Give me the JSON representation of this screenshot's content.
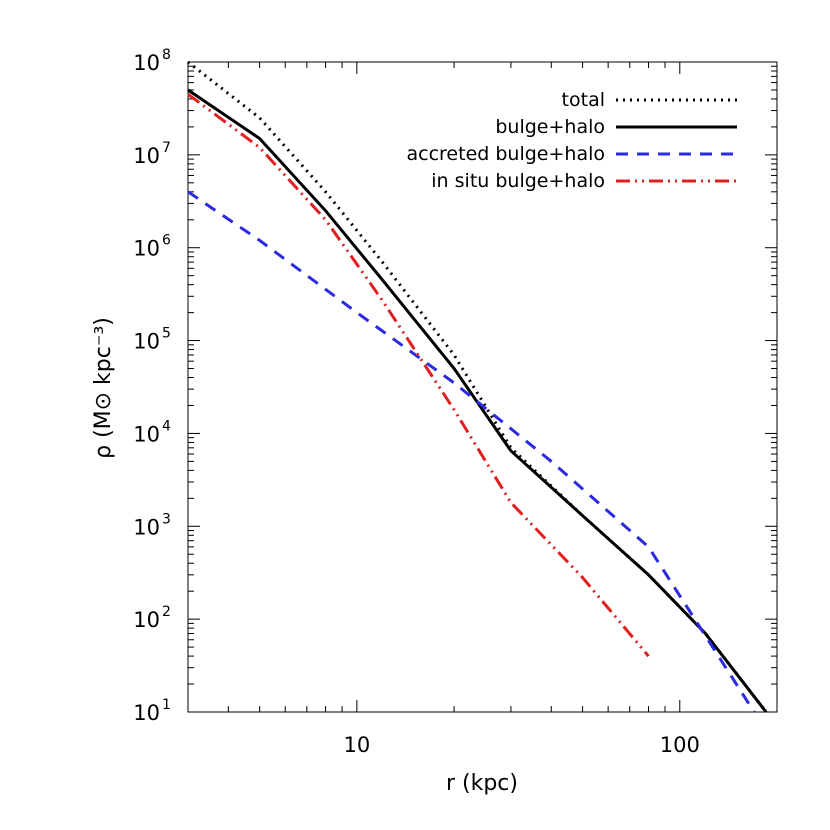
{
  "chart_data": {
    "type": "line",
    "xlabel": "r (kpc)",
    "ylabel": "ρ (M⊙ kpc⁻³)",
    "xscale": "log",
    "yscale": "log",
    "xlim": [
      3,
      200
    ],
    "ylim": [
      10,
      100000000
    ],
    "x_ticks": [
      {
        "value": 10,
        "label": "10"
      },
      {
        "value": 100,
        "label": "100"
      }
    ],
    "y_ticks": [
      {
        "value": 10,
        "base": "10",
        "exp": "1"
      },
      {
        "value": 100,
        "base": "10",
        "exp": "2"
      },
      {
        "value": 1000,
        "base": "10",
        "exp": "3"
      },
      {
        "value": 10000,
        "base": "10",
        "exp": "4"
      },
      {
        "value": 100000,
        "base": "10",
        "exp": "5"
      },
      {
        "value": 1000000,
        "base": "10",
        "exp": "6"
      },
      {
        "value": 10000000,
        "base": "10",
        "exp": "7"
      },
      {
        "value": 100000000,
        "base": "10",
        "exp": "8"
      }
    ],
    "legend_position": "top-right",
    "grid": false,
    "series": [
      {
        "name": "total",
        "color": "#000000",
        "style": "dotted",
        "x": [
          3,
          5,
          8,
          12,
          20,
          30,
          50,
          80,
          120,
          185
        ],
        "y": [
          100000000,
          25000000,
          4000000,
          700000,
          70000,
          7000,
          1300,
          300,
          70,
          10
        ]
      },
      {
        "name": "bulge+halo",
        "color": "#000000",
        "style": "solid",
        "x": [
          3,
          5,
          8,
          12,
          20,
          30,
          50,
          80,
          120,
          185
        ],
        "y": [
          50000000,
          15000000,
          2500000,
          450000,
          50000,
          6500,
          1300,
          300,
          70,
          10
        ]
      },
      {
        "name": "accreted bulge+halo",
        "color": "#2a2ae0",
        "style": "dashed",
        "x": [
          3,
          5,
          10,
          20,
          40,
          80,
          170
        ],
        "y": [
          4000000,
          1200000,
          200000,
          35000,
          5000,
          600,
          10
        ]
      },
      {
        "name": "in situ bulge+halo",
        "color": "#e02020",
        "style": "dash-dot-dot",
        "x": [
          3,
          5,
          8,
          12,
          20,
          30,
          50,
          80
        ],
        "y": [
          45000000,
          12000000,
          2000000,
          270000,
          18000,
          1800,
          280,
          40
        ]
      }
    ]
  }
}
